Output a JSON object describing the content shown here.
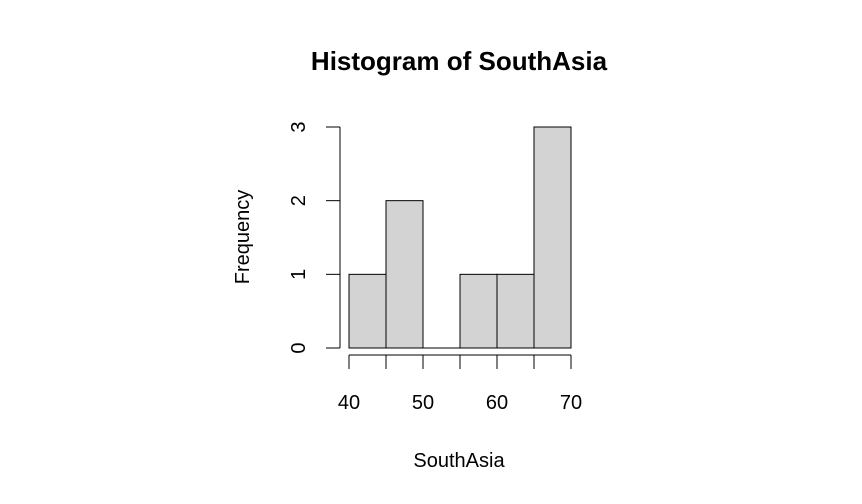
{
  "chart_data": {
    "type": "bar",
    "title": "Histogram of SouthAsia",
    "xlabel": "SouthAsia",
    "ylabel": "Frequency",
    "bins": [
      {
        "start": 40,
        "end": 45,
        "count": 1
      },
      {
        "start": 45,
        "end": 50,
        "count": 2
      },
      {
        "start": 50,
        "end": 55,
        "count": 0
      },
      {
        "start": 55,
        "end": 60,
        "count": 1
      },
      {
        "start": 60,
        "end": 65,
        "count": 1
      },
      {
        "start": 65,
        "end": 70,
        "count": 3
      }
    ],
    "xlim": [
      40,
      70
    ],
    "ylim": [
      0,
      3
    ],
    "x_ticks": [
      40,
      50,
      60,
      70
    ],
    "x_minor_ticks": [
      45,
      55,
      65
    ],
    "y_ticks": [
      0,
      1,
      2,
      3
    ],
    "bar_color": "#d3d3d3",
    "grid": false
  }
}
